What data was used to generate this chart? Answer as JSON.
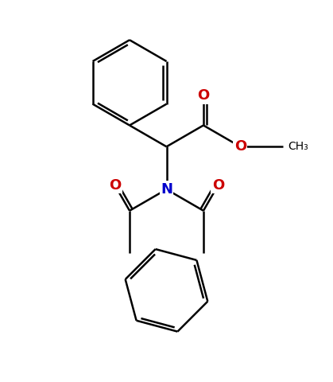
{
  "bg_color": "#ffffff",
  "bond_color": "#000000",
  "N_color": "#0000cc",
  "O_color": "#cc0000",
  "line_width": 1.8,
  "figsize": [
    4.19,
    4.8
  ],
  "dpi": 100,
  "xlim": [
    0,
    10
  ],
  "ylim": [
    0,
    11.5
  ]
}
